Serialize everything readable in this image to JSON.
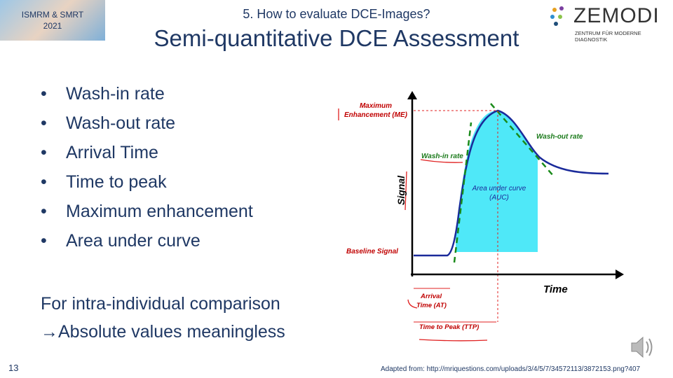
{
  "header": {
    "badge": [
      "ISMRM & SMRT",
      "2021"
    ],
    "subtitle": "5. How to evaluate DCE-Images?",
    "title": "Semi-quantitative DCE Assessment",
    "logo": {
      "name": "ZEMODI",
      "tagline": "ZENTRUM FÜR MODERNE DIAGNOSTIK"
    }
  },
  "bullets": [
    "Wash-in rate",
    "Wash-out rate",
    "Arrival Time",
    "Time to peak",
    "Maximum enhancement",
    "Area under curve"
  ],
  "note": [
    "For intra-individual comparison",
    "→Absolute values meaningless"
  ],
  "diagram": {
    "max_enhancement": [
      "Maximum",
      "Enhancement (ME)"
    ],
    "wash_in": "Wash-in rate",
    "wash_out": "Wash-out rate",
    "y_axis": "Signal",
    "auc": [
      "Area under curve",
      "(AUC)"
    ],
    "baseline": "Baseline Signal",
    "x_axis": "Time",
    "arrival": [
      "Arrival",
      "Time (AT)"
    ],
    "ttp": "Time to Peak (TTP)"
  },
  "footer": {
    "page": "13",
    "source": "Adapted from: http://mriquestions.com/uploads/3/4/5/7/34572113/3872153.png?407"
  }
}
